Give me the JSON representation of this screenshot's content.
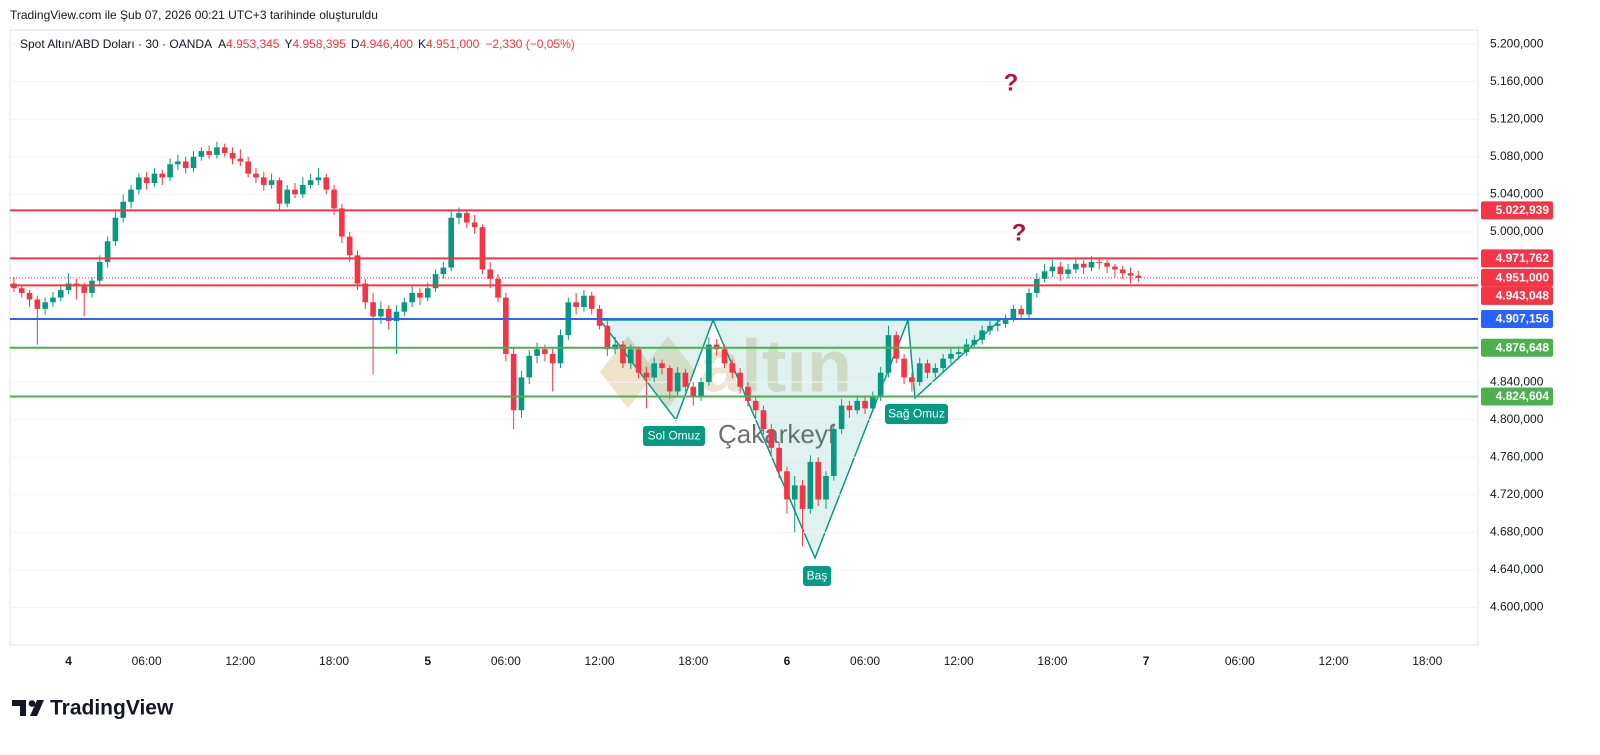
{
  "header": {
    "created": "TradingView.com ile Şub 07, 2026 00:21 UTC+3 tarihinde oluşturuldu",
    "brand": "TradingView"
  },
  "chart_data": {
    "type": "candlestick",
    "legend": {
      "symbol": "Spot Altın/ABD Doları · 30 · OANDA",
      "items": [
        {
          "key": "A",
          "value": "4.953,345"
        },
        {
          "key": "Y",
          "value": "4.958,395"
        },
        {
          "key": "D",
          "value": "4.946,400"
        },
        {
          "key": "K",
          "value": "4.951,000"
        }
      ],
      "change": "−2,330 (−0,05%)"
    },
    "up_color": "#089981",
    "down_color": "#f23645",
    "ylim": [
      4560,
      5215
    ],
    "yticks": [
      {
        "value": 5200,
        "label": "5.200,000"
      },
      {
        "value": 5160,
        "label": "5.160,000"
      },
      {
        "value": 5120,
        "label": "5.120,000"
      },
      {
        "value": 5080,
        "label": "5.080,000"
      },
      {
        "value": 5040,
        "label": "5.040,000"
      },
      {
        "value": 5000,
        "label": "5.000,000"
      },
      {
        "value": 4840,
        "label": "4.840,000"
      },
      {
        "value": 4800,
        "label": "4.800,000"
      },
      {
        "value": 4760,
        "label": "4.760,000"
      },
      {
        "value": 4720,
        "label": "4.720,000"
      },
      {
        "value": 4680,
        "label": "4.680,000"
      },
      {
        "value": 4640,
        "label": "4.640,000"
      },
      {
        "value": 4600,
        "label": "4.600,000"
      }
    ],
    "grid": true,
    "levels": [
      {
        "value": 5022.939,
        "label": "5.022,939",
        "color": "#f23645"
      },
      {
        "value": 4971.762,
        "label": "4.971,762",
        "color": "#f23645"
      },
      {
        "value": 4943.048,
        "label": "4.943,048",
        "color": "#f23645"
      },
      {
        "value": 4907.156,
        "label": "4.907,156",
        "color": "#2962ff"
      },
      {
        "value": 4876.648,
        "label": "4.876,648",
        "color": "#4caf50"
      },
      {
        "value": 4824.604,
        "label": "4.824,604",
        "color": "#4caf50"
      }
    ],
    "last_price": {
      "value": 4951,
      "label": "4.951,000",
      "color": "#f23645"
    },
    "pattern_labels": [
      "Sol Omuz",
      "Baş",
      "Sağ Omuz"
    ],
    "annotations": [
      "?",
      "?"
    ],
    "watermark": [
      "altın",
      "Çakarkeyf"
    ],
    "categories": [
      null,
      null,
      null,
      null,
      null,
      null,
      null,
      "4",
      null,
      null,
      null,
      null,
      null,
      null,
      null,
      null,
      null,
      "06:00",
      null,
      null,
      null,
      null,
      null,
      null,
      null,
      null,
      null,
      null,
      null,
      "12:00",
      null,
      null,
      null,
      null,
      null,
      null,
      null,
      null,
      null,
      null,
      null,
      "18:00",
      null,
      null,
      null,
      null,
      null,
      null,
      null,
      null,
      null,
      null,
      null,
      "5",
      null,
      null,
      null,
      null,
      null,
      null,
      null,
      null,
      null,
      "06:00",
      null,
      null,
      null,
      null,
      null,
      null,
      null,
      null,
      null,
      null,
      null,
      "12:00",
      null,
      null,
      null,
      null,
      null,
      null,
      null,
      null,
      null,
      null,
      null,
      "18:00",
      null,
      null,
      null,
      null,
      null,
      null,
      null,
      null,
      null,
      null,
      null,
      "6",
      null,
      null,
      null,
      null,
      null,
      null,
      null,
      null,
      null,
      "06:00",
      null,
      null,
      null,
      null,
      null,
      null,
      null,
      null,
      null,
      null,
      null,
      "12:00",
      null,
      null,
      null,
      null,
      null,
      null,
      null,
      null,
      null,
      null,
      null,
      "18:00",
      null,
      null,
      null,
      null,
      null,
      null,
      null,
      null,
      null,
      null,
      null,
      "7",
      null,
      null,
      null,
      null,
      null,
      null,
      null,
      null,
      null,
      null,
      null,
      "06:00",
      null,
      null,
      null,
      null,
      null,
      null,
      null,
      null,
      null,
      null,
      null,
      "12:00",
      null,
      null,
      null,
      null,
      null,
      null,
      null,
      null,
      null,
      null,
      null,
      "18:00",
      null,
      null,
      null,
      null,
      null,
      null
    ],
    "ohlc": [
      [
        4945,
        4952,
        4936,
        4940
      ],
      [
        4940,
        4944,
        4930,
        4935
      ],
      [
        4935,
        4938,
        4920,
        4928
      ],
      [
        4928,
        4932,
        4880,
        4918
      ],
      [
        4918,
        4930,
        4912,
        4925
      ],
      [
        4925,
        4936,
        4920,
        4930
      ],
      [
        4930,
        4944,
        4926,
        4938
      ],
      [
        4938,
        4956,
        4934,
        4945
      ],
      [
        4945,
        4950,
        4928,
        4942
      ],
      [
        4942,
        4946,
        4910,
        4935
      ],
      [
        4935,
        4952,
        4930,
        4948
      ],
      [
        4948,
        4975,
        4944,
        4968
      ],
      [
        4968,
        4995,
        4962,
        4990
      ],
      [
        4990,
        5022,
        4985,
        5015
      ],
      [
        5015,
        5040,
        5010,
        5032
      ],
      [
        5032,
        5050,
        5025,
        5045
      ],
      [
        5045,
        5062,
        5040,
        5058
      ],
      [
        5058,
        5064,
        5045,
        5052
      ],
      [
        5052,
        5068,
        5048,
        5062
      ],
      [
        5062,
        5066,
        5050,
        5058
      ],
      [
        5058,
        5078,
        5054,
        5072
      ],
      [
        5072,
        5082,
        5066,
        5075
      ],
      [
        5075,
        5080,
        5062,
        5068
      ],
      [
        5068,
        5086,
        5064,
        5080
      ],
      [
        5080,
        5090,
        5076,
        5086
      ],
      [
        5086,
        5092,
        5078,
        5082
      ],
      [
        5082,
        5096,
        5078,
        5090
      ],
      [
        5090,
        5094,
        5080,
        5084
      ],
      [
        5084,
        5090,
        5072,
        5078
      ],
      [
        5078,
        5088,
        5070,
        5075
      ],
      [
        5075,
        5080,
        5058,
        5062
      ],
      [
        5062,
        5068,
        5052,
        5058
      ],
      [
        5058,
        5064,
        5044,
        5050
      ],
      [
        5050,
        5062,
        5046,
        5055
      ],
      [
        5055,
        5058,
        5022,
        5030
      ],
      [
        5030,
        5050,
        5026,
        5045
      ],
      [
        5045,
        5052,
        5036,
        5040
      ],
      [
        5040,
        5058,
        5036,
        5050
      ],
      [
        5050,
        5062,
        5046,
        5055
      ],
      [
        5055,
        5068,
        5050,
        5058
      ],
      [
        5058,
        5062,
        5040,
        5045
      ],
      [
        5045,
        5050,
        5018,
        5025
      ],
      [
        5025,
        5030,
        4988,
        4995
      ],
      [
        4995,
        5000,
        4968,
        4975
      ],
      [
        4975,
        4980,
        4938,
        4945
      ],
      [
        4945,
        4950,
        4918,
        4925
      ],
      [
        4925,
        4935,
        4848,
        4910
      ],
      [
        4910,
        4926,
        4902,
        4918
      ],
      [
        4918,
        4922,
        4896,
        4905
      ],
      [
        4905,
        4922,
        4870,
        4915
      ],
      [
        4915,
        4930,
        4910,
        4925
      ],
      [
        4925,
        4942,
        4920,
        4935
      ],
      [
        4935,
        4940,
        4922,
        4930
      ],
      [
        4930,
        4946,
        4926,
        4940
      ],
      [
        4940,
        4960,
        4936,
        4955
      ],
      [
        4955,
        4968,
        4950,
        4962
      ],
      [
        4962,
        5022,
        4958,
        5015
      ],
      [
        5015,
        5026,
        5008,
        5020
      ],
      [
        5020,
        5024,
        5004,
        5010
      ],
      [
        5010,
        5018,
        4998,
        5005
      ],
      [
        5005,
        5008,
        4955,
        4960
      ],
      [
        4960,
        4968,
        4940,
        4950
      ],
      [
        4950,
        4955,
        4925,
        4930
      ],
      [
        4930,
        4935,
        4862,
        4870
      ],
      [
        4870,
        4876,
        4790,
        4810
      ],
      [
        4810,
        4852,
        4802,
        4845
      ],
      [
        4845,
        4874,
        4838,
        4868
      ],
      [
        4868,
        4882,
        4860,
        4875
      ],
      [
        4875,
        4880,
        4862,
        4870
      ],
      [
        4870,
        4876,
        4830,
        4860
      ],
      [
        4860,
        4896,
        4855,
        4890
      ],
      [
        4890,
        4930,
        4885,
        4925
      ],
      [
        4925,
        4935,
        4912,
        4920
      ],
      [
        4920,
        4938,
        4915,
        4932
      ],
      [
        4932,
        4936,
        4912,
        4918
      ],
      [
        4918,
        4922,
        4896,
        4900
      ],
      [
        4900,
        4905,
        4868,
        4875
      ],
      [
        4875,
        4888,
        4870,
        4880
      ],
      [
        4880,
        4884,
        4855,
        4860
      ],
      [
        4860,
        4880,
        4854,
        4875
      ],
      [
        4875,
        4878,
        4844,
        4850
      ],
      [
        4850,
        4856,
        4812,
        4845
      ],
      [
        4845,
        4866,
        4840,
        4860
      ],
      [
        4860,
        4864,
        4848,
        4855
      ],
      [
        4855,
        4858,
        4822,
        4830
      ],
      [
        4830,
        4856,
        4826,
        4850
      ],
      [
        4850,
        4854,
        4830,
        4835
      ],
      [
        4835,
        4840,
        4815,
        4825
      ],
      [
        4825,
        4845,
        4820,
        4840
      ],
      [
        4840,
        4888,
        4836,
        4880
      ],
      [
        4880,
        4886,
        4868,
        4875
      ],
      [
        4875,
        4880,
        4855,
        4860
      ],
      [
        4860,
        4864,
        4844,
        4850
      ],
      [
        4850,
        4855,
        4828,
        4835
      ],
      [
        4835,
        4840,
        4814,
        4820
      ],
      [
        4820,
        4825,
        4802,
        4810
      ],
      [
        4810,
        4815,
        4784,
        4790
      ],
      [
        4790,
        4795,
        4764,
        4770
      ],
      [
        4770,
        4776,
        4738,
        4745
      ],
      [
        4745,
        4750,
        4700,
        4715
      ],
      [
        4715,
        4740,
        4680,
        4730
      ],
      [
        4730,
        4736,
        4665,
        4705
      ],
      [
        4705,
        4762,
        4700,
        4755
      ],
      [
        4755,
        4760,
        4708,
        4715
      ],
      [
        4715,
        4745,
        4705,
        4740
      ],
      [
        4740,
        4796,
        4735,
        4790
      ],
      [
        4790,
        4822,
        4785,
        4815
      ],
      [
        4815,
        4820,
        4802,
        4810
      ],
      [
        4810,
        4826,
        4806,
        4820
      ],
      [
        4820,
        4824,
        4806,
        4812
      ],
      [
        4812,
        4830,
        4808,
        4825
      ],
      [
        4825,
        4856,
        4820,
        4850
      ],
      [
        4850,
        4900,
        4845,
        4890
      ],
      [
        4890,
        4894,
        4860,
        4865
      ],
      [
        4865,
        4870,
        4838,
        4845
      ],
      [
        4845,
        4850,
        4830,
        4840
      ],
      [
        4840,
        4866,
        4836,
        4860
      ],
      [
        4860,
        4864,
        4844,
        4850
      ],
      [
        4850,
        4860,
        4845,
        4855
      ],
      [
        4855,
        4870,
        4850,
        4865
      ],
      [
        4865,
        4876,
        4860,
        4870
      ],
      [
        4870,
        4878,
        4864,
        4872
      ],
      [
        4872,
        4886,
        4868,
        4880
      ],
      [
        4880,
        4890,
        4876,
        4885
      ],
      [
        4885,
        4900,
        4880,
        4895
      ],
      [
        4895,
        4905,
        4890,
        4900
      ],
      [
        4900,
        4908,
        4894,
        4902
      ],
      [
        4902,
        4912,
        4898,
        4908
      ],
      [
        4908,
        4922,
        4904,
        4918
      ],
      [
        4918,
        4922,
        4906,
        4912
      ],
      [
        4912,
        4940,
        4908,
        4935
      ],
      [
        4935,
        4956,
        4930,
        4950
      ],
      [
        4950,
        4966,
        4946,
        4958
      ],
      [
        4958,
        4970,
        4952,
        4963
      ],
      [
        4963,
        4968,
        4948,
        4955
      ],
      [
        4955,
        4966,
        4950,
        4960
      ],
      [
        4960,
        4972,
        4956,
        4966
      ],
      [
        4966,
        4970,
        4955,
        4962
      ],
      [
        4962,
        4974,
        4958,
        4968
      ],
      [
        4968,
        4972,
        4960,
        4967
      ],
      [
        4967,
        4970,
        4956,
        4963
      ],
      [
        4963,
        4966,
        4952,
        4960
      ],
      [
        4960,
        4964,
        4950,
        4956
      ],
      [
        4956,
        4962,
        4945,
        4953.345
      ],
      [
        4953.345,
        4958.395,
        4946.4,
        4951
      ],
      null,
      null,
      null,
      null,
      null,
      null,
      null,
      null,
      null,
      null,
      null,
      null,
      null,
      null,
      null,
      null,
      null,
      null,
      null,
      null,
      null,
      null,
      null,
      null,
      null,
      null,
      null,
      null,
      null,
      null,
      null,
      null,
      null,
      null,
      null,
      null,
      null,
      null,
      null,
      null,
      null,
      null,
      null
    ]
  }
}
